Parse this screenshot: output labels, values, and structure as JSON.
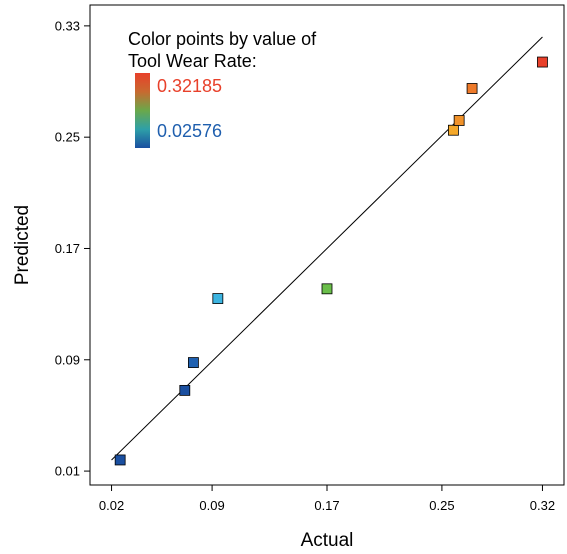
{
  "chart_data": {
    "type": "scatter",
    "xlabel": "Actual",
    "ylabel": "Predicted",
    "xlim": [
      0.005,
      0.335
    ],
    "ylim": [
      0.0,
      0.345
    ],
    "x_ticks": [
      0.02,
      0.09,
      0.17,
      0.25,
      0.32
    ],
    "x_tick_labels": [
      "0.02",
      "0.09",
      "0.17",
      "0.25",
      "0.32"
    ],
    "y_ticks": [
      0.01,
      0.09,
      0.17,
      0.25,
      0.33
    ],
    "y_tick_labels": [
      "0.01",
      "0.09",
      "0.17",
      "0.25",
      "0.33"
    ],
    "grid": false,
    "legend": {
      "title_line1": "Color points by value of",
      "title_line2": "Tool Wear Rate:",
      "max_label": "0.32185",
      "min_label": "0.02576",
      "max_value": 0.32185,
      "min_value": 0.02576,
      "placement": "top-left"
    },
    "colors": {
      "high": "#e8402a",
      "upper": "#f0922a",
      "mid": "#6abe4a",
      "lower": "#3cb4e0",
      "low": "#1a4fa0",
      "max_label_color": "#e8402a",
      "min_label_color": "#1f5fae"
    },
    "fit_line": {
      "x": [
        0.02,
        0.32
      ],
      "y": [
        0.018,
        0.322
      ]
    },
    "points": [
      {
        "x": 0.026,
        "y": 0.018,
        "color": "#1a4fa0"
      },
      {
        "x": 0.071,
        "y": 0.068,
        "color": "#1a4fa0"
      },
      {
        "x": 0.077,
        "y": 0.088,
        "color": "#1f60b0"
      },
      {
        "x": 0.094,
        "y": 0.134,
        "color": "#3cb4e0"
      },
      {
        "x": 0.17,
        "y": 0.141,
        "color": "#6abe4a"
      },
      {
        "x": 0.258,
        "y": 0.255,
        "color": "#f4a82a"
      },
      {
        "x": 0.262,
        "y": 0.262,
        "color": "#f0922a"
      },
      {
        "x": 0.271,
        "y": 0.285,
        "color": "#ee7a2a"
      },
      {
        "x": 0.32,
        "y": 0.304,
        "color": "#e8402a"
      }
    ]
  }
}
